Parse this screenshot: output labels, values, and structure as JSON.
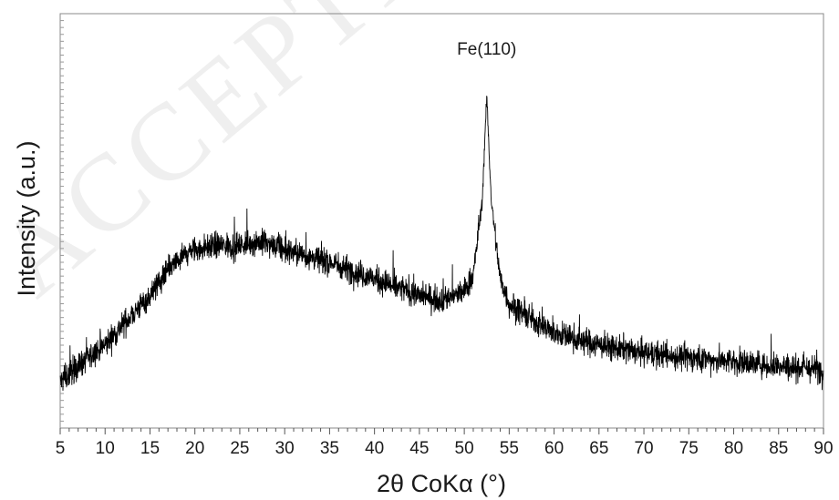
{
  "chart_data": {
    "type": "line",
    "title": "",
    "xlabel": "2θ CoKα (°)",
    "ylabel": "Intensity (a.u.)",
    "xlim": [
      5,
      90
    ],
    "ylim": [
      0,
      100
    ],
    "x_ticks": [
      5,
      10,
      15,
      20,
      25,
      30,
      35,
      40,
      45,
      50,
      55,
      60,
      65,
      70,
      75,
      80,
      85,
      90
    ],
    "y_tick_labels_shown": false,
    "grid": false,
    "legend": "none",
    "line_color": "#000000",
    "watermark": "ACCEPTED",
    "annotations": [
      {
        "text": "Fe(110)",
        "x": 52.5,
        "y": 95
      }
    ],
    "series": [
      {
        "baseline": {
          "x": [
            5,
            7,
            10,
            12,
            15,
            17,
            19,
            20,
            22,
            25,
            27,
            30,
            35,
            40,
            45,
            47,
            49,
            50,
            51,
            52,
            52.5,
            53,
            54,
            55,
            57,
            60,
            65,
            70,
            75,
            80,
            85,
            90
          ],
          "y": [
            11,
            15,
            20,
            25,
            32,
            38,
            42,
            43,
            44,
            44,
            45,
            43,
            40,
            36,
            32,
            31,
            32,
            33,
            37,
            55,
            80,
            55,
            36,
            30,
            27,
            23,
            20,
            18,
            17,
            16,
            15,
            14
          ]
        }
      }
    ]
  }
}
